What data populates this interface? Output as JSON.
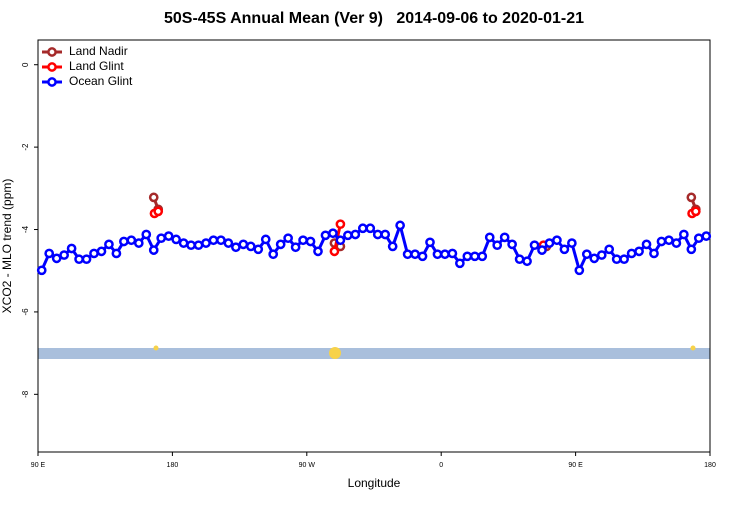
{
  "chart_data": {
    "type": "line",
    "title": "50S-45S Annual Mean (Ver 9)   2014-09-06 to 2020-01-21",
    "x_label": "Longitude",
    "y_label": "XCO2 - MLO trend (ppm)",
    "xlim": [
      90,
      540
    ],
    "ylim": [
      -9.4,
      0.6
    ],
    "xticks": [
      {
        "value": 90,
        "label": "90 E"
      },
      {
        "value": 180,
        "label": "180"
      },
      {
        "value": 270,
        "label": "90 W"
      },
      {
        "value": 360,
        "label": "0"
      },
      {
        "value": 450,
        "label": "90 E"
      },
      {
        "value": 540,
        "label": "180"
      }
    ],
    "yticks": [
      0,
      -2,
      -4,
      -6,
      -8
    ],
    "legend": "top-left",
    "series": [
      {
        "name": "Land Nadir",
        "color": "#a52a2a",
        "x": [
          167.5,
          170.5,
          172,
          288.5,
          292.5,
          294,
          430.5,
          432,
          527.5,
          530.5
        ],
        "values": [
          -3.22,
          -3.51,
          null,
          -4.33,
          -4.41,
          null,
          -4.41,
          null,
          -3.22,
          -3.51
        ]
      },
      {
        "name": "Land Glint",
        "color": "#ff0000",
        "x": [
          168,
          170.5,
          172,
          288.5,
          292.5,
          294,
          428.5,
          430,
          528,
          530.5
        ],
        "values": [
          -3.61,
          -3.56,
          null,
          -4.53,
          -3.87,
          null,
          -4.38,
          null,
          -3.61,
          -3.56
        ]
      },
      {
        "name": "Ocean Glint",
        "color": "#0000ff",
        "x": [
          92.5,
          97.5,
          102.5,
          107.5,
          112.5,
          117.5,
          122.5,
          127.5,
          132.5,
          137.5,
          142.5,
          147.5,
          152.5,
          157.5,
          162.5,
          167.5,
          172.5,
          177.5,
          182.5,
          187.5,
          192.5,
          197.5,
          202.5,
          207.5,
          212.5,
          217.5,
          222.5,
          227.5,
          232.5,
          237.5,
          242.5,
          247.5,
          252.5,
          257.5,
          262.5,
          267.5,
          272.5,
          277.5,
          282.5,
          287.5,
          292.5,
          297.5,
          302.5,
          307.5,
          312.5,
          317.5,
          322.5,
          327.5,
          332.5,
          337.5,
          342.5,
          347.5,
          352.5,
          357.5,
          362.5,
          367.5,
          372.5,
          377.5,
          382.5,
          387.5,
          392.5,
          397.5,
          402.5,
          407.5,
          412.5,
          417.5,
          422.5,
          427.5,
          432.5,
          437.5,
          442.5,
          447.5,
          452.5,
          457.5,
          462.5,
          467.5,
          472.5,
          477.5,
          482.5,
          487.5,
          492.5,
          497.5,
          502.5,
          507.5,
          512.5,
          517.5,
          522.5,
          527.5,
          532.5,
          537.5
        ],
        "values": [
          -4.99,
          -4.58,
          -4.7,
          -4.62,
          -4.46,
          -4.72,
          -4.72,
          -4.58,
          -4.53,
          -4.36,
          -4.58,
          -4.29,
          -4.26,
          -4.33,
          -4.12,
          -4.5,
          -4.21,
          -4.16,
          -4.24,
          -4.33,
          -4.38,
          -4.38,
          -4.33,
          -4.26,
          -4.26,
          -4.33,
          -4.43,
          -4.36,
          -4.41,
          -4.48,
          -4.24,
          -4.6,
          -4.36,
          -4.21,
          -4.43,
          -4.26,
          -4.29,
          -4.53,
          -4.14,
          -4.09,
          -4.26,
          -4.14,
          -4.12,
          -3.97,
          -3.97,
          -4.12,
          -4.12,
          -4.41,
          -3.9,
          -4.6,
          -4.6,
          -4.65,
          -4.31,
          -4.6,
          -4.6,
          -4.58,
          -4.82,
          -4.65,
          -4.65,
          -4.65,
          -4.19,
          -4.38,
          -4.19,
          -4.36,
          -4.72,
          -4.77,
          -4.38,
          -4.5,
          -4.33,
          -4.26,
          -4.48,
          -4.33,
          -4.99,
          -4.6,
          -4.7,
          -4.62,
          -4.48,
          -4.72,
          -4.72,
          -4.58,
          -4.53,
          -4.36,
          -4.58,
          -4.29,
          -4.26,
          -4.33,
          -4.12,
          -4.48,
          -4.21,
          -4.16
        ]
      }
    ]
  }
}
